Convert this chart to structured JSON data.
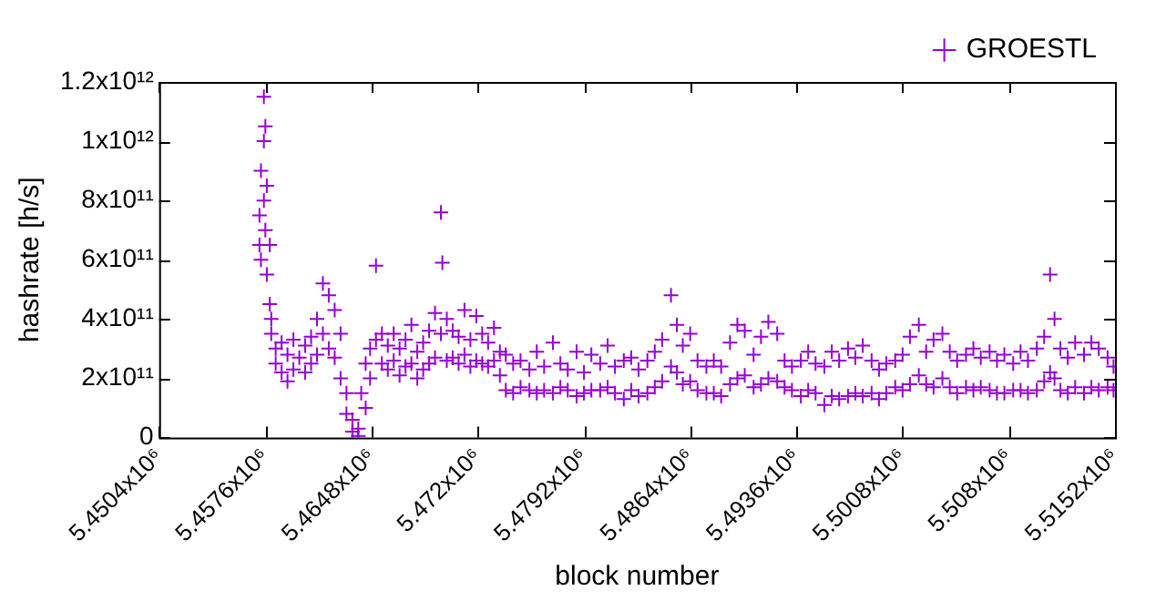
{
  "chart_data": {
    "type": "scatter",
    "xlabel": "block number",
    "ylabel": "hashrate [h/s]",
    "legend": "top right",
    "marker": "cross",
    "grid": false,
    "xlim": [
      5450400,
      5515200
    ],
    "xticks": [
      {
        "value": 5450400,
        "label": "5.4504x10⁶"
      },
      {
        "value": 5457600,
        "label": "5.4576x10⁶"
      },
      {
        "value": 5464800,
        "label": "5.4648x10⁶"
      },
      {
        "value": 5472000,
        "label": "5.472x10⁶"
      },
      {
        "value": 5479200,
        "label": "5.4792x10⁶"
      },
      {
        "value": 5486400,
        "label": "5.4864x10⁶"
      },
      {
        "value": 5493600,
        "label": "5.4936x10⁶"
      },
      {
        "value": 5500800,
        "label": "5.5008x10⁶"
      },
      {
        "value": 5508000,
        "label": "5.508x10⁶"
      },
      {
        "value": 5515200,
        "label": "5.5152x10⁶"
      }
    ],
    "ylim": [
      0,
      1200000000000
    ],
    "yticks": [
      0,
      {
        "value": 200000000000,
        "label": "2x10¹¹"
      },
      {
        "value": 400000000000,
        "label": "4x10¹¹"
      },
      {
        "value": 600000000000,
        "label": "6x10¹¹"
      },
      {
        "value": 800000000000,
        "label": "8x10¹¹"
      },
      {
        "value": 1000000000000,
        "label": "1x10¹²"
      },
      {
        "value": 1200000000000,
        "label": "1.2x10¹²"
      }
    ],
    "series": [
      {
        "name": "GROESTL",
        "color": "#9400d3",
        "x": [
          5457200,
          5457200,
          5457300,
          5457300,
          5457500,
          5457500,
          5457500,
          5457600,
          5457600,
          5457700,
          5457700,
          5457900,
          5457900,
          5458000,
          5458000,
          5458300,
          5458300,
          5458700,
          5458700,
          5459100,
          5459100,
          5459500,
          5459500,
          5459900,
          5460300,
          5460300,
          5460700,
          5460700,
          5461100,
          5461100,
          5461500,
          5461500,
          5461900,
          5461900,
          5462300,
          5462300,
          5462700,
          5462700,
          5463100,
          5463100,
          5463500,
          5463500,
          5463900,
          5463900,
          5464100,
          5464400,
          5464400,
          5464700,
          5464700,
          5465100,
          5465100,
          5465500,
          5465500,
          5465900,
          5465900,
          5466300,
          5466300,
          5466700,
          5466700,
          5467100,
          5467100,
          5467500,
          5467500,
          5467900,
          5467900,
          5468300,
          5468300,
          5468700,
          5468700,
          5469100,
          5469100,
          5469500,
          5469500,
          5469600,
          5469900,
          5469900,
          5470300,
          5470300,
          5470700,
          5470700,
          5471100,
          5471100,
          5471500,
          5471500,
          5471900,
          5471900,
          5472300,
          5472300,
          5472700,
          5472700,
          5473100,
          5473100,
          5473500,
          5473500,
          5473900,
          5473900,
          5474400,
          5474400,
          5474900,
          5474900,
          5475500,
          5475500,
          5476000,
          5476000,
          5476500,
          5476500,
          5477100,
          5477100,
          5477600,
          5477600,
          5478100,
          5478100,
          5478700,
          5478700,
          5479200,
          5479200,
          5479700,
          5479700,
          5480300,
          5480300,
          5480800,
          5480800,
          5481300,
          5481300,
          5481900,
          5481900,
          5482400,
          5482400,
          5482900,
          5482900,
          5483500,
          5483500,
          5484000,
          5484000,
          5484500,
          5484500,
          5485100,
          5485100,
          5485500,
          5485500,
          5485900,
          5485900,
          5486400,
          5486400,
          5486900,
          5486900,
          5487500,
          5487500,
          5488000,
          5488000,
          5488500,
          5488500,
          5489100,
          5489100,
          5489600,
          5489600,
          5490100,
          5490100,
          5490700,
          5490700,
          5491200,
          5491200,
          5491700,
          5491700,
          5492300,
          5492300,
          5492800,
          5492800,
          5493300,
          5493300,
          5493900,
          5493900,
          5494400,
          5494400,
          5494900,
          5494900,
          5495500,
          5495500,
          5496000,
          5496000,
          5496500,
          5496500,
          5497100,
          5497100,
          5497600,
          5497600,
          5498100,
          5498100,
          5498700,
          5498700,
          5499200,
          5499200,
          5499700,
          5499700,
          5500300,
          5500300,
          5500800,
          5500800,
          5501300,
          5501300,
          5501900,
          5501900,
          5502400,
          5502400,
          5502900,
          5502900,
          5503500,
          5503500,
          5504000,
          5504000,
          5504500,
          5504500,
          5505100,
          5505100,
          5505600,
          5505600,
          5506100,
          5506100,
          5506700,
          5506700,
          5507200,
          5507200,
          5507700,
          5507700,
          5508300,
          5508300,
          5508800,
          5508800,
          5509300,
          5509300,
          5509900,
          5509900,
          5510400,
          5510400,
          5510800,
          5510800,
          5511100,
          5511100,
          5511500,
          5511500,
          5512000,
          5512000,
          5512500,
          5512500,
          5513100,
          5513100,
          5513600,
          5513600,
          5514100,
          5514100,
          5514700,
          5514700,
          5515100,
          5515100
        ],
        "values": [
          650000000000,
          750000000000,
          900000000000,
          600000000000,
          1150000000000,
          1000000000000,
          800000000000,
          1050000000000,
          700000000000,
          850000000000,
          550000000000,
          650000000000,
          450000000000,
          400000000000,
          350000000000,
          250000000000,
          300000000000,
          320000000000,
          220000000000,
          280000000000,
          190000000000,
          330000000000,
          230000000000,
          270000000000,
          310000000000,
          220000000000,
          340000000000,
          250000000000,
          400000000000,
          280000000000,
          520000000000,
          350000000000,
          480000000000,
          300000000000,
          430000000000,
          270000000000,
          350000000000,
          200000000000,
          150000000000,
          80000000000,
          60000000000,
          20000000000,
          5000000000,
          30000000000,
          150000000000,
          250000000000,
          100000000000,
          300000000000,
          200000000000,
          580000000000,
          330000000000,
          350000000000,
          250000000000,
          310000000000,
          230000000000,
          350000000000,
          260000000000,
          300000000000,
          210000000000,
          330000000000,
          240000000000,
          380000000000,
          250000000000,
          290000000000,
          200000000000,
          320000000000,
          230000000000,
          360000000000,
          250000000000,
          420000000000,
          270000000000,
          760000000000,
          350000000000,
          590000000000,
          400000000000,
          260000000000,
          360000000000,
          270000000000,
          340000000000,
          250000000000,
          430000000000,
          280000000000,
          330000000000,
          240000000000,
          410000000000,
          260000000000,
          350000000000,
          250000000000,
          320000000000,
          240000000000,
          370000000000,
          260000000000,
          290000000000,
          210000000000,
          280000000000,
          160000000000,
          250000000000,
          150000000000,
          260000000000,
          170000000000,
          230000000000,
          160000000000,
          290000000000,
          150000000000,
          240000000000,
          160000000000,
          320000000000,
          150000000000,
          250000000000,
          170000000000,
          230000000000,
          160000000000,
          290000000000,
          140000000000,
          220000000000,
          150000000000,
          280000000000,
          160000000000,
          250000000000,
          160000000000,
          310000000000,
          170000000000,
          240000000000,
          150000000000,
          260000000000,
          130000000000,
          270000000000,
          160000000000,
          230000000000,
          140000000000,
          260000000000,
          150000000000,
          290000000000,
          170000000000,
          330000000000,
          190000000000,
          480000000000,
          240000000000,
          380000000000,
          220000000000,
          310000000000,
          180000000000,
          350000000000,
          190000000000,
          260000000000,
          160000000000,
          240000000000,
          150000000000,
          260000000000,
          150000000000,
          240000000000,
          140000000000,
          320000000000,
          180000000000,
          380000000000,
          200000000000,
          360000000000,
          210000000000,
          280000000000,
          170000000000,
          340000000000,
          180000000000,
          390000000000,
          200000000000,
          350000000000,
          190000000000,
          260000000000,
          170000000000,
          240000000000,
          160000000000,
          260000000000,
          140000000000,
          290000000000,
          160000000000,
          250000000000,
          150000000000,
          240000000000,
          110000000000,
          290000000000,
          140000000000,
          260000000000,
          130000000000,
          300000000000,
          140000000000,
          270000000000,
          150000000000,
          310000000000,
          140000000000,
          260000000000,
          150000000000,
          230000000000,
          130000000000,
          250000000000,
          150000000000,
          260000000000,
          170000000000,
          280000000000,
          160000000000,
          340000000000,
          180000000000,
          380000000000,
          210000000000,
          290000000000,
          180000000000,
          330000000000,
          170000000000,
          350000000000,
          200000000000,
          290000000000,
          170000000000,
          260000000000,
          150000000000,
          280000000000,
          170000000000,
          300000000000,
          160000000000,
          270000000000,
          170000000000,
          290000000000,
          160000000000,
          260000000000,
          150000000000,
          280000000000,
          150000000000,
          250000000000,
          160000000000,
          290000000000,
          160000000000,
          260000000000,
          150000000000,
          300000000000,
          160000000000,
          340000000000,
          190000000000,
          550000000000,
          220000000000,
          400000000000,
          200000000000,
          300000000000,
          160000000000,
          270000000000,
          150000000000,
          320000000000,
          170000000000,
          280000000000,
          150000000000,
          320000000000,
          170000000000,
          300000000000,
          160000000000,
          270000000000,
          170000000000,
          240000000000,
          160000000000
        ]
      }
    ]
  }
}
